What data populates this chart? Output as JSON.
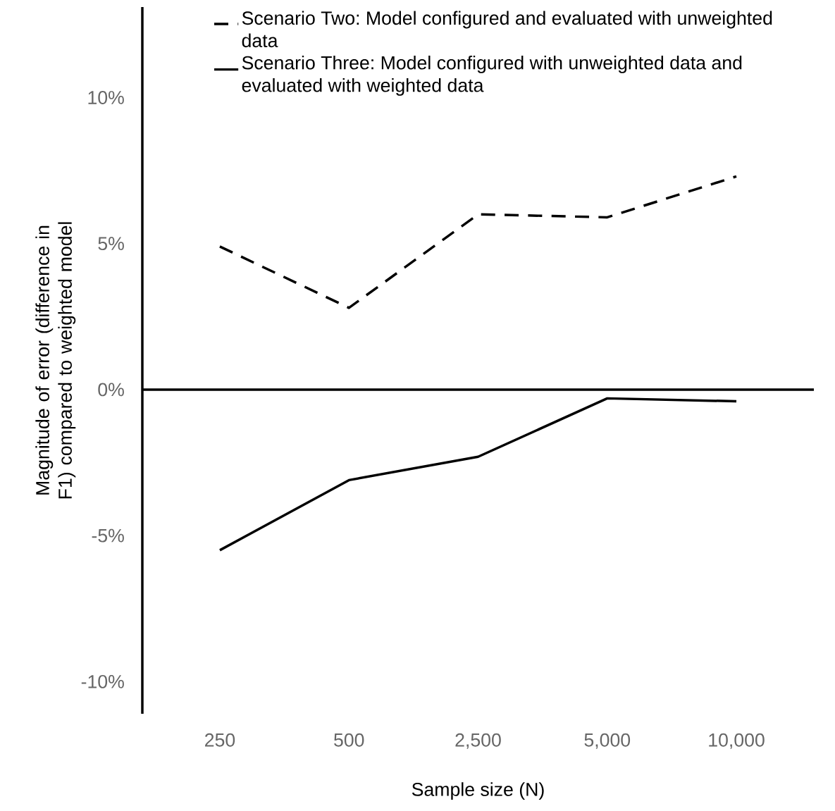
{
  "chart_data": {
    "type": "line",
    "xlabel": "Sample size (N)",
    "ylabel": "Magnitude of error (difference in F1) compared to weighted model",
    "categories": [
      "250",
      "500",
      "2,500",
      "5,000",
      "10,000"
    ],
    "series": [
      {
        "name": "Scenario Two: Model configured and evaluated with unweighted data",
        "color": "#000000",
        "line_style": "dashed",
        "values": [
          4.9,
          2.8,
          6.0,
          5.9,
          7.3
        ]
      },
      {
        "name": "Scenario Three: Model configured with unweighted data and evaluated with weighted data",
        "color": "#000000",
        "line_style": "solid",
        "values": [
          -5.5,
          -3.1,
          -2.3,
          -0.3,
          -0.4
        ]
      }
    ],
    "ylim": [
      -11.1,
      13.1
    ],
    "yticks": [
      {
        "value": 10,
        "label": "10%"
      },
      {
        "value": 5,
        "label": "5%"
      },
      {
        "value": 0,
        "label": "0%"
      },
      {
        "value": -5,
        "label": "-5%"
      },
      {
        "value": -10,
        "label": "-10%"
      }
    ],
    "legend": "top"
  }
}
